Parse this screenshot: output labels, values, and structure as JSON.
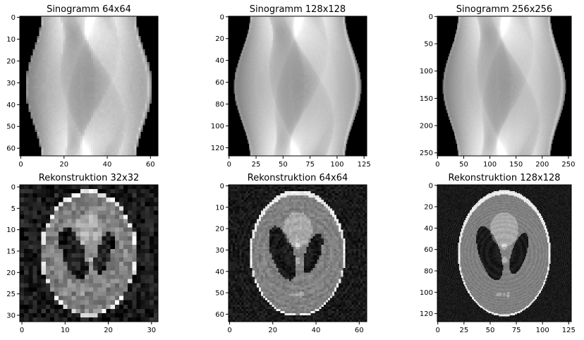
{
  "chart_data": [
    {
      "type": "heatmap",
      "kind": "sinogram",
      "title": "Sinogramm 64x64",
      "size": 64,
      "xlim": [
        0,
        64
      ],
      "ylim": [
        0,
        64
      ],
      "xticks": [
        "0",
        "20",
        "40",
        "60"
      ],
      "xtick_values": [
        0,
        20,
        40,
        60
      ],
      "yticks": [
        "0",
        "10",
        "20",
        "30",
        "40",
        "50",
        "60"
      ],
      "ytick_values": [
        0,
        10,
        20,
        30,
        40,
        50,
        60
      ],
      "colormap": "gray"
    },
    {
      "type": "heatmap",
      "kind": "sinogram",
      "title": "Sinogramm 128x128",
      "size": 128,
      "xlim": [
        0,
        128
      ],
      "ylim": [
        0,
        128
      ],
      "xticks": [
        "0",
        "25",
        "50",
        "75",
        "100",
        "125"
      ],
      "xtick_values": [
        0,
        25,
        50,
        75,
        100,
        125
      ],
      "yticks": [
        "0",
        "20",
        "40",
        "60",
        "80",
        "100",
        "120"
      ],
      "ytick_values": [
        0,
        20,
        40,
        60,
        80,
        100,
        120
      ],
      "colormap": "gray"
    },
    {
      "type": "heatmap",
      "kind": "sinogram",
      "title": "Sinogramm 256x256",
      "size": 256,
      "xlim": [
        0,
        256
      ],
      "ylim": [
        0,
        256
      ],
      "xticks": [
        "0",
        "50",
        "100",
        "150",
        "200",
        "250"
      ],
      "xtick_values": [
        0,
        50,
        100,
        150,
        200,
        250
      ],
      "yticks": [
        "0",
        "50",
        "100",
        "150",
        "200",
        "250"
      ],
      "ytick_values": [
        0,
        50,
        100,
        150,
        200,
        250
      ],
      "colormap": "gray"
    },
    {
      "type": "heatmap",
      "kind": "reconstruction",
      "title": "Rekonstruktion 32x32",
      "size": 32,
      "xlim": [
        0,
        32
      ],
      "ylim": [
        0,
        32
      ],
      "xticks": [
        "0",
        "10",
        "20",
        "30"
      ],
      "xtick_values": [
        0,
        10,
        20,
        30
      ],
      "yticks": [
        "0",
        "5",
        "10",
        "15",
        "20",
        "25",
        "30"
      ],
      "ytick_values": [
        0,
        5,
        10,
        15,
        20,
        25,
        30
      ],
      "colormap": "gray"
    },
    {
      "type": "heatmap",
      "kind": "reconstruction",
      "title": "Rekonstruktion 64x64",
      "size": 64,
      "xlim": [
        0,
        64
      ],
      "ylim": [
        0,
        64
      ],
      "xticks": [
        "0",
        "20",
        "40",
        "60"
      ],
      "xtick_values": [
        0,
        20,
        40,
        60
      ],
      "yticks": [
        "0",
        "10",
        "20",
        "30",
        "40",
        "50",
        "60"
      ],
      "ytick_values": [
        0,
        10,
        20,
        30,
        40,
        50,
        60
      ],
      "colormap": "gray"
    },
    {
      "type": "heatmap",
      "kind": "reconstruction",
      "title": "Rekonstruktion 128x128",
      "size": 128,
      "xlim": [
        0,
        128
      ],
      "ylim": [
        0,
        128
      ],
      "xticks": [
        "0",
        "25",
        "50",
        "75",
        "100",
        "125"
      ],
      "xtick_values": [
        0,
        25,
        50,
        75,
        100,
        125
      ],
      "yticks": [
        "0",
        "20",
        "40",
        "60",
        "80",
        "100",
        "120"
      ],
      "ytick_values": [
        0,
        20,
        40,
        60,
        80,
        100,
        120
      ],
      "colormap": "gray"
    }
  ]
}
